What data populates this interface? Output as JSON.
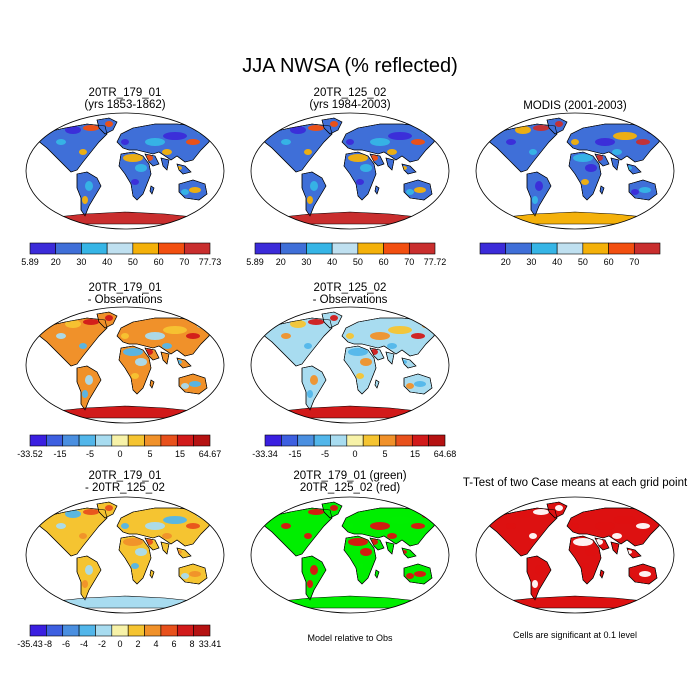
{
  "title": "JJA NWSA (% reflected)",
  "colors": {
    "abs": [
      "#3b2bd9",
      "#3f6fd8",
      "#36b5e6",
      "#bfe0f0",
      "#f4b10a",
      "#f24f10",
      "#c92e2e"
    ],
    "diff": [
      "#3a1fe0",
      "#3d5fe0",
      "#4a8fe0",
      "#52b6ea",
      "#a8dcf0",
      "#f7f2a8",
      "#f5c431",
      "#f0912a",
      "#e8511c",
      "#d11a1a",
      "#b51212"
    ],
    "green": "#00ee00",
    "red": "#dd1111",
    "ocean": "#ffffff",
    "coast": "#000000"
  },
  "panels": [
    {
      "id": "p1",
      "title_line1": "20TR_179_01",
      "title_line2": "(yrs 1853-1862)",
      "base": "#3f6fd8",
      "spots": [
        "#36b5e6",
        "#f4b10a",
        "#3b2bd9",
        "#f24f10"
      ],
      "ant": "#c92e2e",
      "colorbar": {
        "scale": "abs",
        "labels": [
          "5.89",
          "20",
          "30",
          "40",
          "50",
          "60",
          "70",
          "77.73"
        ]
      }
    },
    {
      "id": "p2",
      "title_line1": "20TR_125_02",
      "title_line2": "(yrs 1984-2003)",
      "base": "#3f6fd8",
      "spots": [
        "#36b5e6",
        "#f4b10a",
        "#3b2bd9",
        "#f24f10"
      ],
      "ant": "#c92e2e",
      "colorbar": {
        "scale": "abs",
        "labels": [
          "5.89",
          "20",
          "30",
          "40",
          "50",
          "60",
          "70",
          "77.72"
        ]
      }
    },
    {
      "id": "p3",
      "title_line1": "MODIS (2001-2003)",
      "title_line2": "",
      "base": "#3f6fd8",
      "spots": [
        "#3b2bd9",
        "#36b5e6",
        "#f4b10a",
        "#c92e2e"
      ],
      "ant": "#f4b10a",
      "colorbar": {
        "scale": "abs",
        "labels": [
          "",
          "20",
          "30",
          "40",
          "50",
          "60",
          "70",
          ""
        ]
      }
    },
    {
      "id": "p4",
      "title_line1": "20TR_179_01",
      "title_line2": "- Observations",
      "base": "#f0912a",
      "spots": [
        "#a8dcf0",
        "#52b6ea",
        "#f5c431",
        "#d11a1a"
      ],
      "ant": "#d11a1a",
      "colorbar": {
        "scale": "diff",
        "labels": [
          "-33.52",
          "-15",
          "-5",
          "0",
          "5",
          "15",
          "64.67"
        ]
      }
    },
    {
      "id": "p5",
      "title_line1": "20TR_125_02",
      "title_line2": "- Observations",
      "base": "#a8dcf0",
      "spots": [
        "#f0912a",
        "#52b6ea",
        "#f5c431",
        "#d11a1a"
      ],
      "ant": "#d11a1a",
      "colorbar": {
        "scale": "diff",
        "labels": [
          "-33.34",
          "-15",
          "-5",
          "0",
          "5",
          "15",
          "64.68"
        ]
      }
    },
    {
      "id": "p7",
      "title_line1": "20TR_179_01",
      "title_line2": "- 20TR_125_02",
      "base": "#f5c431",
      "spots": [
        "#a8dcf0",
        "#f0912a",
        "#52b6ea",
        "#e8511c"
      ],
      "ant": "#a8dcf0",
      "colorbar": {
        "scale": "diff",
        "labels": [
          "-35.43",
          "-8",
          "-6",
          "-4",
          "-2",
          "0",
          "2",
          "4",
          "6",
          "8",
          "33.41"
        ]
      }
    },
    {
      "id": "p8",
      "title_line1": "20TR_179_01 (green)",
      "title_line2": "20TR_125_02 (red)",
      "base": "#00ee00",
      "spots": [
        "#dd1111",
        "#dd1111",
        "#00ee00",
        "#dd1111"
      ],
      "ant": "#00ee00",
      "colorbar": null
    },
    {
      "id": "p9",
      "title_line1": "T-Test of two Case means at each grid point",
      "title_line2": "",
      "base": "#dd1111",
      "spots": [
        "#dd1111",
        "#ffffff",
        "#dd1111",
        "#ffffff"
      ],
      "ant": "#dd1111",
      "colorbar": null
    }
  ],
  "notes": {
    "model_relative": "Model relative to Obs",
    "significance": "Cells are significant at 0.1 level"
  }
}
